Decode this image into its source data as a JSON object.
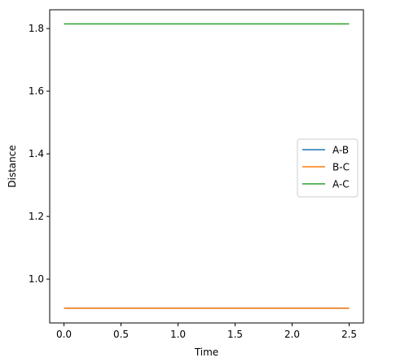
{
  "chart_data": {
    "type": "line",
    "title": "",
    "xlabel": "Time",
    "ylabel": "Distance",
    "xlim": [
      -0.125,
      2.625
    ],
    "ylim": [
      0.86,
      1.86
    ],
    "xticks": [
      "0.0",
      "0.5",
      "1.0",
      "1.5",
      "2.0",
      "2.5"
    ],
    "yticks": [
      "1.0",
      "1.2",
      "1.4",
      "1.6",
      "1.8"
    ],
    "grid": false,
    "legend_position": "center-right",
    "series": [
      {
        "name": "A-B",
        "color": "#1f77b4",
        "x": [
          0.0,
          2.5
        ],
        "y": [
          0.907,
          0.907
        ]
      },
      {
        "name": "B-C",
        "color": "#ff7f0e",
        "x": [
          0.0,
          2.5
        ],
        "y": [
          0.907,
          0.907
        ]
      },
      {
        "name": "A-C",
        "color": "#2ca02c",
        "x": [
          0.0,
          2.5
        ],
        "y": [
          1.815,
          1.815
        ]
      }
    ]
  }
}
